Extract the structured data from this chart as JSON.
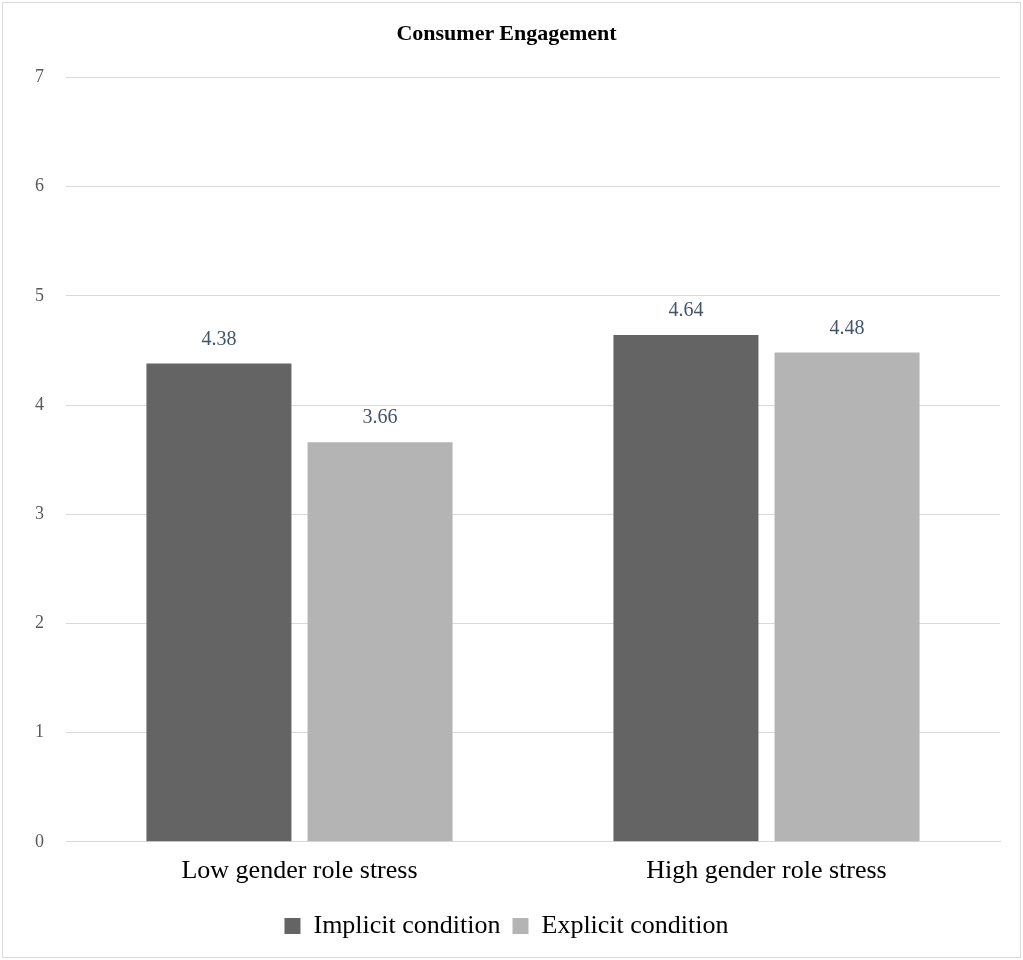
{
  "chart_data": {
    "type": "bar",
    "title": "Consumer Engagement",
    "categories": [
      "Low gender role stress",
      "High gender role stress"
    ],
    "series": [
      {
        "name": "Implicit condition",
        "color": "#646464",
        "values": [
          4.38,
          4.64
        ]
      },
      {
        "name": "Explicit condition",
        "color": "#b4b4b4",
        "values": [
          3.66,
          4.48
        ]
      }
    ],
    "ylim": [
      0,
      7
    ],
    "yticks": [
      0,
      1,
      2,
      3,
      4,
      5,
      6,
      7
    ],
    "grid": "y",
    "legend": "bottom",
    "data_labels": true
  }
}
